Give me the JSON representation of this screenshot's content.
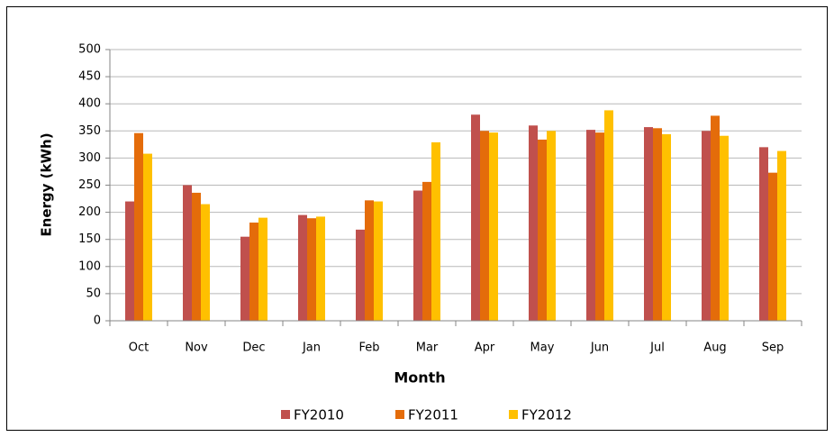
{
  "chart_data": {
    "type": "bar",
    "x_label": "Month",
    "y_label": "Energy (kWh)",
    "categories": [
      "Oct",
      "Nov",
      "Dec",
      "Jan",
      "Feb",
      "Mar",
      "Apr",
      "May",
      "Jun",
      "Jul",
      "Aug",
      "Sep"
    ],
    "series": [
      {
        "name": "FY2010",
        "color": "#c0504d",
        "values": [
          220,
          250,
          155,
          195,
          168,
          240,
          380,
          360,
          352,
          357,
          350,
          320
        ]
      },
      {
        "name": "FY2011",
        "color": "#e46c0a",
        "values": [
          346,
          236,
          181,
          189,
          222,
          256,
          350,
          334,
          347,
          355,
          378,
          273
        ]
      },
      {
        "name": "FY2012",
        "color": "#ffc000",
        "values": [
          308,
          215,
          190,
          192,
          220,
          329,
          347,
          350,
          388,
          344,
          341,
          313
        ]
      }
    ],
    "ylim": [
      0,
      500
    ],
    "yticks": [
      0,
      50,
      100,
      150,
      200,
      250,
      300,
      350,
      400,
      450,
      500
    ],
    "grid": true,
    "legend": "bottom"
  }
}
